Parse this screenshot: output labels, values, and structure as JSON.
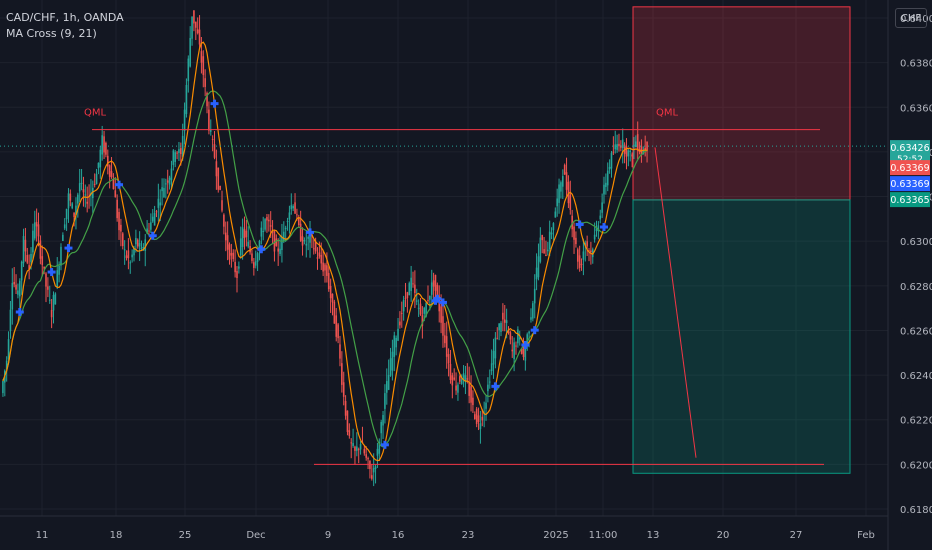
{
  "header": {
    "symbol_line": "CAD/CHF, 1h, OANDA",
    "indicator_line": "MA Cross (9, 21)",
    "currency_button": "CHF"
  },
  "chart_data": {
    "type": "candlestick",
    "y_axis": {
      "min": 0.6172,
      "max": 0.6414,
      "tick_labels": [
        "0.64000",
        "0.63800",
        "0.63600",
        "0.63400",
        "0.63200",
        "0.63000",
        "0.62800",
        "0.62600",
        "0.62400",
        "0.62200",
        "0.62000",
        "0.61800"
      ],
      "tick_values": [
        0.64,
        0.638,
        0.636,
        0.634,
        0.632,
        0.63,
        0.628,
        0.626,
        0.624,
        0.622,
        0.62,
        0.618
      ]
    },
    "x_axis": {
      "tick_labels": [
        "11",
        "18",
        "25",
        "Dec",
        "9",
        "16",
        "23",
        "2025",
        "11:00",
        "13",
        "20",
        "27",
        "Feb"
      ]
    },
    "price_path": [
      [
        0.6232,
        0.6247
      ],
      [
        0.6246,
        0.6284
      ],
      [
        0.6284,
        0.6275
      ],
      [
        0.6275,
        0.63
      ],
      [
        0.63,
        0.6288
      ],
      [
        0.6288,
        0.631
      ],
      [
        0.631,
        0.6295
      ],
      [
        0.6295,
        0.628
      ],
      [
        0.628,
        0.6268
      ],
      [
        0.6268,
        0.6285
      ],
      [
        0.6285,
        0.6305
      ],
      [
        0.6305,
        0.632
      ],
      [
        0.632,
        0.6312
      ],
      [
        0.6312,
        0.6326
      ],
      [
        0.6326,
        0.6318
      ],
      [
        0.6318,
        0.6322
      ],
      [
        0.6322,
        0.633
      ],
      [
        0.633,
        0.6345
      ],
      [
        0.6345,
        0.6335
      ],
      [
        0.6335,
        0.6325
      ],
      [
        0.6325,
        0.6305
      ],
      [
        0.6305,
        0.6295
      ],
      [
        0.6295,
        0.629
      ],
      [
        0.629,
        0.63
      ],
      [
        0.63,
        0.6295
      ],
      [
        0.6295,
        0.6305
      ],
      [
        0.6305,
        0.631
      ],
      [
        0.631,
        0.6318
      ],
      [
        0.6318,
        0.6325
      ],
      [
        0.6325,
        0.633
      ],
      [
        0.633,
        0.6342
      ],
      [
        0.6342,
        0.6338
      ],
      [
        0.6338,
        0.637
      ],
      [
        0.637,
        0.6402
      ],
      [
        0.6402,
        0.6392
      ],
      [
        0.6392,
        0.6375
      ],
      [
        0.6375,
        0.6352
      ],
      [
        0.6352,
        0.6338
      ],
      [
        0.6338,
        0.632
      ],
      [
        0.632,
        0.63
      ],
      [
        0.63,
        0.6292
      ],
      [
        0.6292,
        0.6285
      ],
      [
        0.6285,
        0.6305
      ],
      [
        0.6305,
        0.6298
      ],
      [
        0.6298,
        0.629
      ],
      [
        0.629,
        0.63
      ],
      [
        0.63,
        0.631
      ],
      [
        0.631,
        0.6305
      ],
      [
        0.6305,
        0.6295
      ],
      [
        0.6295,
        0.63
      ],
      [
        0.63,
        0.6312
      ],
      [
        0.6312,
        0.6318
      ],
      [
        0.6318,
        0.6305
      ],
      [
        0.6305,
        0.6298
      ],
      [
        0.6298,
        0.6302
      ],
      [
        0.6302,
        0.6295
      ],
      [
        0.6295,
        0.629
      ],
      [
        0.629,
        0.6285
      ],
      [
        0.6285,
        0.627
      ],
      [
        0.627,
        0.6255
      ],
      [
        0.6255,
        0.623
      ],
      [
        0.623,
        0.621
      ],
      [
        0.621,
        0.6205
      ],
      [
        0.6205,
        0.621
      ],
      [
        0.621,
        0.6202
      ],
      [
        0.6202,
        0.6195
      ],
      [
        0.6195,
        0.6205
      ],
      [
        0.6205,
        0.6225
      ],
      [
        0.6225,
        0.624
      ],
      [
        0.624,
        0.6255
      ],
      [
        0.6255,
        0.6265
      ],
      [
        0.6265,
        0.6275
      ],
      [
        0.6275,
        0.6282
      ],
      [
        0.6282,
        0.6272
      ],
      [
        0.6272,
        0.6265
      ],
      [
        0.6265,
        0.6275
      ],
      [
        0.6275,
        0.6282
      ],
      [
        0.6282,
        0.627
      ],
      [
        0.627,
        0.6255
      ],
      [
        0.6255,
        0.624
      ],
      [
        0.624,
        0.6235
      ],
      [
        0.6235,
        0.624
      ],
      [
        0.624,
        0.6236
      ],
      [
        0.6236,
        0.6225
      ],
      [
        0.6225,
        0.6218
      ],
      [
        0.6218,
        0.6225
      ],
      [
        0.6225,
        0.624
      ],
      [
        0.624,
        0.6255
      ],
      [
        0.6255,
        0.6265
      ],
      [
        0.6265,
        0.6262
      ],
      [
        0.6262,
        0.625
      ],
      [
        0.625,
        0.6258
      ],
      [
        0.6258,
        0.6248
      ],
      [
        0.6248,
        0.6262
      ],
      [
        0.6262,
        0.628
      ],
      [
        0.628,
        0.63
      ],
      [
        0.63,
        0.6295
      ],
      [
        0.6295,
        0.6305
      ],
      [
        0.6305,
        0.6318
      ],
      [
        0.6318,
        0.6332
      ],
      [
        0.6332,
        0.632
      ],
      [
        0.632,
        0.6302
      ],
      [
        0.6302,
        0.6288
      ],
      [
        0.6288,
        0.63
      ],
      [
        0.63,
        0.6295
      ],
      [
        0.6295,
        0.6305
      ],
      [
        0.6305,
        0.6318
      ],
      [
        0.6318,
        0.6332
      ],
      [
        0.6332,
        0.634
      ],
      [
        0.634,
        0.6345
      ],
      [
        0.6345,
        0.6342
      ],
      [
        0.6342,
        0.6338
      ],
      [
        0.6338,
        0.6345
      ],
      [
        0.6345,
        0.634
      ],
      [
        0.634,
        0.6343
      ]
    ],
    "levels": [
      {
        "label": "QML",
        "value": 0.635
      },
      {
        "label": "",
        "value": 0.62
      }
    ],
    "position": {
      "stop": 0.6405,
      "entry": 0.63185,
      "target": 0.6196
    },
    "price_tags": [
      {
        "text": "0.63426",
        "sub": "52:52",
        "value": 0.63426,
        "color": "#26a69a"
      },
      {
        "text": "0.63369",
        "value": 0.63369,
        "color": "#ef5350",
        "offset": 20
      },
      {
        "text": "0.63369",
        "value": 0.63369,
        "color": "#2962ff",
        "offset": 36
      },
      {
        "text": "0.63365",
        "value": 0.63365,
        "color": "#089981",
        "offset": 52
      }
    ]
  }
}
